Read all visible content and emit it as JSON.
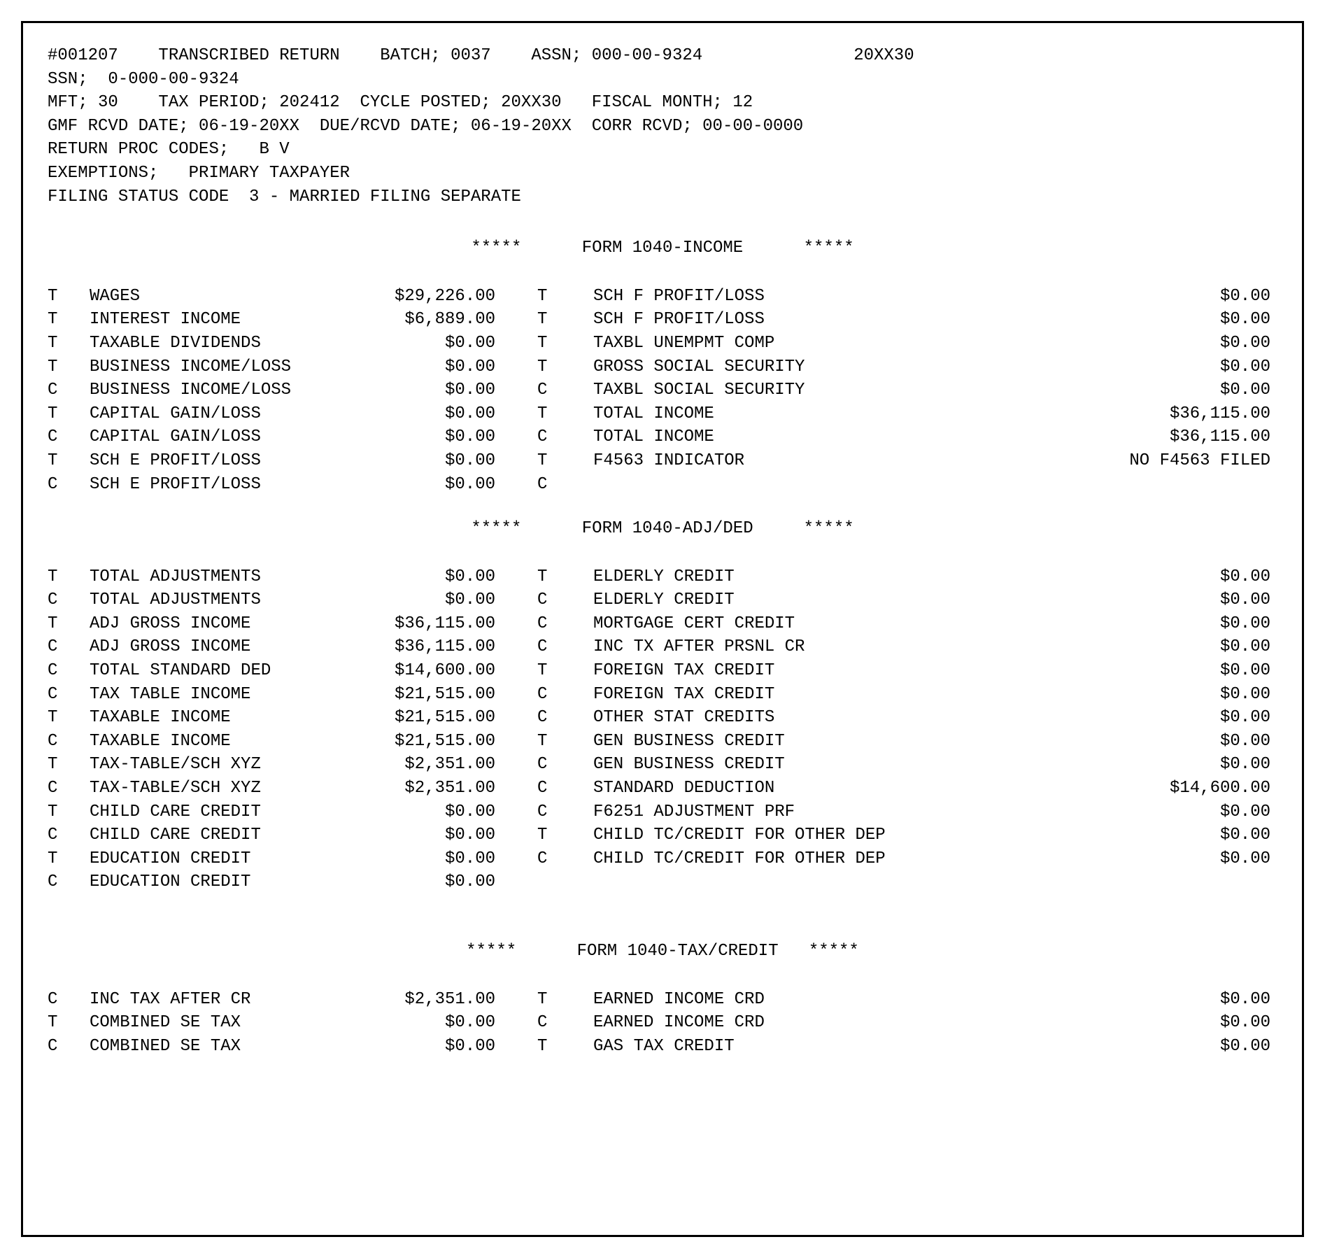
{
  "header": {
    "line1": "#001207    TRANSCRIBED RETURN    BATCH; 0037    ASSN; 000-00-9324               20XX30",
    "line2": "SSN;  0-000-00-9324",
    "line3": "MFT; 30    TAX PERIOD; 202412  CYCLE POSTED; 20XX30   FISCAL MONTH; 12",
    "line4": "GMF RCVD DATE; 06-19-20XX  DUE/RCVD DATE; 06-19-20XX  CORR RCVD; 00-00-0000",
    "line5": "RETURN PROC CODES;   B V",
    "line6": "EXEMPTIONS;   PRIMARY TAXPAYER",
    "line7": "FILING STATUS CODE  3 - MARRIED FILING SEPARATE"
  },
  "sections": {
    "income": {
      "title": "*****      FORM 1040-INCOME      *****",
      "rows": [
        {
          "tc1": "T",
          "label1": "WAGES",
          "val1": "$29,226.00",
          "tc2": "T",
          "label2": "SCH F PROFIT/LOSS",
          "val2": "$0.00"
        },
        {
          "tc1": "T",
          "label1": "INTEREST INCOME",
          "val1": "$6,889.00",
          "tc2": "T",
          "label2": "SCH F PROFIT/LOSS",
          "val2": "$0.00"
        },
        {
          "tc1": "T",
          "label1": "TAXABLE DIVIDENDS",
          "val1": "$0.00",
          "tc2": "T",
          "label2": "TAXBL UNEMPMT COMP",
          "val2": "$0.00"
        },
        {
          "tc1": "T",
          "label1": "BUSINESS INCOME/LOSS",
          "val1": "$0.00",
          "tc2": "T",
          "label2": "GROSS SOCIAL SECURITY",
          "val2": "$0.00"
        },
        {
          "tc1": "C",
          "label1": "BUSINESS INCOME/LOSS",
          "val1": "$0.00",
          "tc2": "C",
          "label2": "TAXBL SOCIAL SECURITY",
          "val2": "$0.00"
        },
        {
          "tc1": "T",
          "label1": "CAPITAL GAIN/LOSS",
          "val1": "$0.00",
          "tc2": "T",
          "label2": "TOTAL INCOME",
          "val2": "$36,115.00"
        },
        {
          "tc1": "C",
          "label1": "CAPITAL GAIN/LOSS",
          "val1": "$0.00",
          "tc2": "C",
          "label2": "TOTAL INCOME",
          "val2": "$36,115.00"
        },
        {
          "tc1": "T",
          "label1": "SCH E PROFIT/LOSS",
          "val1": "$0.00",
          "tc2": "T",
          "label2": "F4563 INDICATOR",
          "val2": "NO F4563 FILED"
        },
        {
          "tc1": "C",
          "label1": "SCH E PROFIT/LOSS",
          "val1": "$0.00",
          "tc2": "C",
          "label2": "",
          "val2": ""
        }
      ]
    },
    "adjded": {
      "title": "*****      FORM 1040-ADJ/DED     *****",
      "rows": [
        {
          "tc1": "T",
          "label1": "TOTAL ADJUSTMENTS",
          "val1": "$0.00",
          "tc2": "T",
          "label2": "ELDERLY CREDIT",
          "val2": "$0.00"
        },
        {
          "tc1": "C",
          "label1": "TOTAL ADJUSTMENTS",
          "val1": "$0.00",
          "tc2": "C",
          "label2": "ELDERLY CREDIT",
          "val2": "$0.00"
        },
        {
          "tc1": "T",
          "label1": "ADJ GROSS INCOME",
          "val1": "$36,115.00",
          "tc2": "C",
          "label2": "MORTGAGE CERT CREDIT",
          "val2": "$0.00"
        },
        {
          "tc1": "C",
          "label1": "ADJ GROSS INCOME",
          "val1": "$36,115.00",
          "tc2": "C",
          "label2": "INC TX AFTER PRSNL CR",
          "val2": "$0.00"
        },
        {
          "tc1": "C",
          "label1": "TOTAL STANDARD DED",
          "val1": "$14,600.00",
          "tc2": "T",
          "label2": "FOREIGN TAX CREDIT",
          "val2": "$0.00"
        },
        {
          "tc1": "C",
          "label1": "TAX TABLE INCOME",
          "val1": "$21,515.00",
          "tc2": "C",
          "label2": "FOREIGN TAX CREDIT",
          "val2": "$0.00"
        },
        {
          "tc1": "T",
          "label1": "TAXABLE INCOME",
          "val1": "$21,515.00",
          "tc2": "C",
          "label2": "OTHER STAT CREDITS",
          "val2": "$0.00"
        },
        {
          "tc1": "C",
          "label1": "TAXABLE INCOME",
          "val1": "$21,515.00",
          "tc2": "T",
          "label2": "GEN BUSINESS CREDIT",
          "val2": "$0.00"
        },
        {
          "tc1": "T",
          "label1": "TAX-TABLE/SCH XYZ",
          "val1": "$2,351.00",
          "tc2": "C",
          "label2": "GEN BUSINESS CREDIT",
          "val2": "$0.00"
        },
        {
          "tc1": "C",
          "label1": "TAX-TABLE/SCH XYZ",
          "val1": "$2,351.00",
          "tc2": "C",
          "label2": "STANDARD DEDUCTION",
          "val2": "$14,600.00"
        },
        {
          "tc1": "T",
          "label1": "CHILD CARE CREDIT",
          "val1": "$0.00",
          "tc2": "C",
          "label2": "F6251 ADJUSTMENT PRF",
          "val2": "$0.00"
        },
        {
          "tc1": "C",
          "label1": "CHILD CARE CREDIT",
          "val1": "$0.00",
          "tc2": "T",
          "label2": "CHILD TC/CREDIT FOR OTHER DEP",
          "val2": "$0.00"
        },
        {
          "tc1": "T",
          "label1": "EDUCATION CREDIT",
          "val1": "$0.00",
          "tc2": "C",
          "label2": "CHILD TC/CREDIT FOR OTHER DEP",
          "val2": "$0.00"
        },
        {
          "tc1": "C",
          "label1": "EDUCATION CREDIT",
          "val1": "$0.00",
          "tc2": "",
          "label2": "",
          "val2": ""
        }
      ]
    },
    "taxcredit": {
      "title": "*****      FORM 1040-TAX/CREDIT   *****",
      "rows": [
        {
          "tc1": "C",
          "label1": "INC TAX AFTER CR",
          "val1": "$2,351.00",
          "tc2": "T",
          "label2": "EARNED INCOME CRD",
          "val2": "$0.00"
        },
        {
          "tc1": "T",
          "label1": "COMBINED SE TAX",
          "val1": "$0.00",
          "tc2": "C",
          "label2": "EARNED INCOME CRD",
          "val2": "$0.00"
        },
        {
          "tc1": "C",
          "label1": "COMBINED SE TAX",
          "val1": "$0.00",
          "tc2": "T",
          "label2": "GAS TAX CREDIT",
          "val2": "$0.00"
        }
      ]
    }
  }
}
